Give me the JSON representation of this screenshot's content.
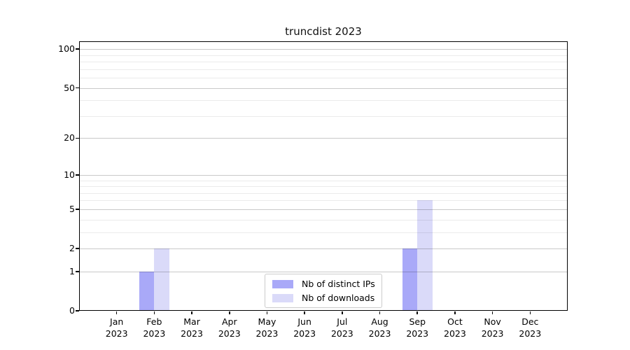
{
  "figure": {
    "title": "truncdist 2023"
  },
  "chart_data": {
    "type": "bar",
    "title": "truncdist 2023",
    "x_tick_months": [
      "Jan",
      "Feb",
      "Mar",
      "Apr",
      "May",
      "Jun",
      "Jul",
      "Aug",
      "Sep",
      "Oct",
      "Nov",
      "Dec"
    ],
    "x_tick_year": "2023",
    "series": [
      {
        "name": "Nb of distinct IPs",
        "color": "#a9a9f8",
        "values": [
          0,
          1,
          0,
          0,
          0,
          0,
          0,
          0,
          2,
          0,
          0,
          0
        ]
      },
      {
        "name": "Nb of downloads",
        "color": "#dadaf9",
        "values": [
          0,
          2,
          0,
          0,
          0,
          0,
          0,
          0,
          6,
          0,
          0,
          0
        ]
      }
    ],
    "yscale": "log1p",
    "ylim": [
      0,
      115
    ],
    "yticks_major": [
      0,
      1,
      2,
      5,
      10,
      20,
      50,
      100
    ],
    "yticks_minor": [
      3,
      4,
      6,
      7,
      8,
      9,
      30,
      40,
      60,
      70,
      80,
      90
    ],
    "grid": "horizontal",
    "legend_position": "inside-bottom-center"
  },
  "colors": {
    "axis": "#000000",
    "grid_major": "#c9c9c9",
    "grid_minor": "#ebebeb",
    "legend_border": "#cccccc",
    "background": "#ffffff"
  }
}
